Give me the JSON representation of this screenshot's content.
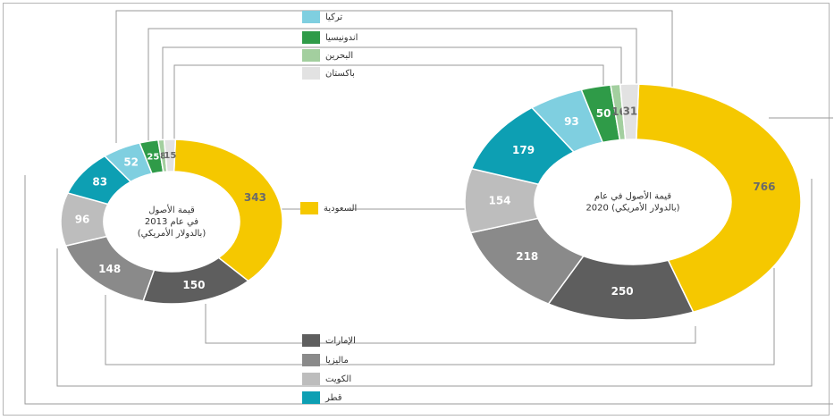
{
  "chart_data": {
    "type": "pie",
    "legend": [
      {
        "key": "turkey",
        "label": "تركيا",
        "color": "#7fcfe0"
      },
      {
        "key": "indonesia",
        "label": "اندونيسيا",
        "color": "#2f9b48"
      },
      {
        "key": "bahrain",
        "label": "البحرين",
        "color": "#a3cf9f"
      },
      {
        "key": "pakistan",
        "label": "باكستان",
        "color": "#e2e2e2"
      },
      {
        "key": "saudi",
        "label": "السعودية",
        "color": "#f5c800"
      },
      {
        "key": "uae",
        "label": "الإمارات",
        "color": "#5e5e5e"
      },
      {
        "key": "malaysia",
        "label": "ماليزيا",
        "color": "#8a8a8a"
      },
      {
        "key": "kuwait",
        "label": "الكويت",
        "color": "#bdbdbd"
      },
      {
        "key": "qatar",
        "label": "قطر",
        "color": "#0d9fb3"
      }
    ],
    "charts": [
      {
        "key": "y2013",
        "center_lines": [
          "قيمة الأصول",
          "في عام 2013",
          "(بالدولار الأمريكي)"
        ],
        "values": {
          "saudi": 343,
          "uae": 150,
          "malaysia": 148,
          "kuwait": 96,
          "qatar": 83,
          "turkey": 52,
          "indonesia": 25,
          "bahrain": 8,
          "pakistan": 15
        },
        "labels": {
          "saudi": "343",
          "uae": "150",
          "malaysia": "148",
          "kuwait": "96",
          "qatar": "83",
          "turkey": "52",
          "indonesia": "25",
          "bahrain": "8",
          "pakistan": "15"
        }
      },
      {
        "key": "y2020",
        "center_lines": [
          "قيمة الأصول في عام",
          "2020 (بالدولار الأمريكي)"
        ],
        "values": {
          "saudi": 766,
          "uae": 250,
          "malaysia": 218,
          "kuwait": 154,
          "qatar": 179,
          "turkey": 93,
          "indonesia": 50,
          "bahrain": 16,
          "pakistan": 31
        },
        "labels": {
          "saudi": "766",
          "uae": "250",
          "malaysia": "218",
          "kuwait": "154",
          "qatar": "179",
          "turkey": "93",
          "indonesia": "50",
          "bahrain": "16",
          "pakistan": "31"
        }
      }
    ]
  }
}
